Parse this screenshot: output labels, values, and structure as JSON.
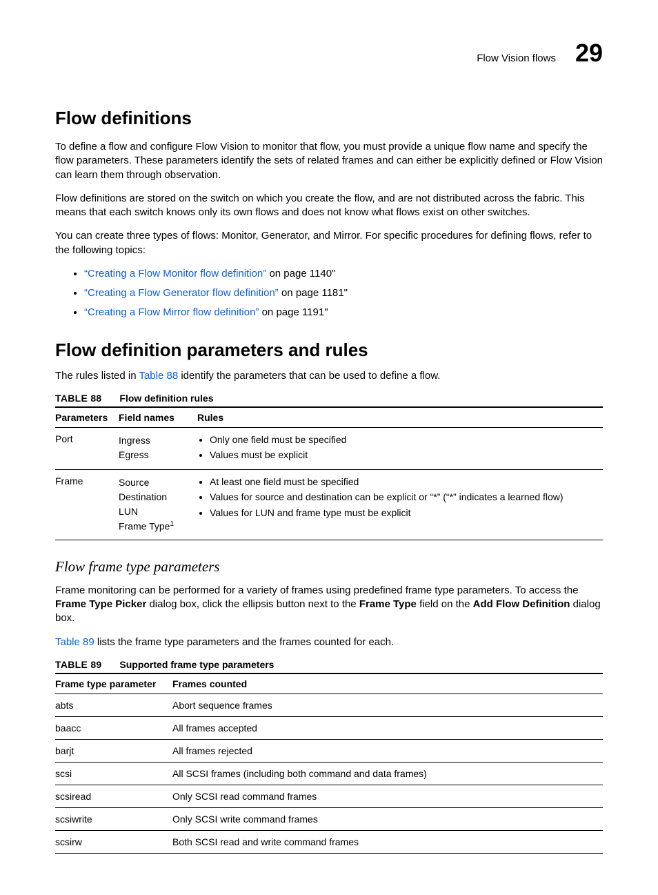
{
  "header": {
    "running_title": "Flow Vision flows",
    "chapter_number": "29"
  },
  "section1": {
    "title": "Flow definitions",
    "para1": "To define a flow and configure Flow Vision to monitor that flow, you must provide a unique flow name and specify the flow parameters. These parameters identify the sets of related frames and can either be explicitly defined or Flow Vision can learn them through observation.",
    "para2": "Flow definitions are stored on the switch on which you create the flow, and are not distributed across the fabric. This means that each switch knows only its own flows and does not know what flows exist on other switches.",
    "para3": "You can create three types of flows: Monitor, Generator, and Mirror. For specific procedures for defining flows, refer to the following topics:",
    "links": [
      {
        "text": "“Creating a Flow Monitor flow definition”",
        "tail": " on page 1140\""
      },
      {
        "text": "“Creating a Flow Generator flow definition”",
        "tail": " on page 1181\""
      },
      {
        "text": "“Creating a Flow Mirror flow definition”",
        "tail": " on page 1191\""
      }
    ]
  },
  "section2": {
    "title": "Flow definition parameters and rules",
    "intro_pre": "The rules listed in ",
    "intro_link": "Table 88",
    "intro_post": " identify the parameters that can be used to define a flow."
  },
  "table88": {
    "caption_num": "TABLE 88",
    "caption_title": "Flow definition rules",
    "headers": {
      "c1": "Parameters",
      "c2": "Field names",
      "c3": "Rules"
    },
    "rows": [
      {
        "param": "Port",
        "fields": [
          "Ingress",
          "Egress"
        ],
        "rules": [
          "Only one field must be specified",
          "Values must be explicit"
        ]
      },
      {
        "param": "Frame",
        "fields_raw": "Source<br>Destination<br>LUN<br>Frame Type<span class=\"sup\">1</span>",
        "rules": [
          "At least one field must be specified",
          "Values for source and destination can be explicit or “*” (“*” indicates a learned flow)",
          "Values for LUN and frame type must be explicit"
        ]
      }
    ]
  },
  "section3": {
    "title": "Flow frame type parameters",
    "para1_pre": "Frame monitoring can be performed for a variety of frames using predefined frame type parameters. To access the ",
    "b1": "Frame Type Picker",
    "mid1": " dialog box, click the ellipsis button next to the ",
    "b2": "Frame Type",
    "mid2": " field on the ",
    "b3": "Add Flow Definition",
    "tail": " dialog box.",
    "para2_link": "Table 89",
    "para2_post": " lists the frame type parameters and the frames counted for each."
  },
  "table89": {
    "caption_num": "TABLE 89",
    "caption_title": "Supported frame type parameters",
    "headers": {
      "c1": "Frame type parameter",
      "c2": "Frames counted"
    },
    "rows": [
      {
        "p": "abts",
        "f": "Abort sequence frames"
      },
      {
        "p": "baacc",
        "f": "All frames accepted"
      },
      {
        "p": "barjt",
        "f": "All frames rejected"
      },
      {
        "p": "scsi",
        "f": "All SCSI frames (including both command and data frames)"
      },
      {
        "p": "scsiread",
        "f": "Only SCSI read command frames"
      },
      {
        "p": "scsiwrite",
        "f": "Only SCSI write command frames"
      },
      {
        "p": "scsirw",
        "f": "Both SCSI read and write command frames"
      }
    ]
  }
}
